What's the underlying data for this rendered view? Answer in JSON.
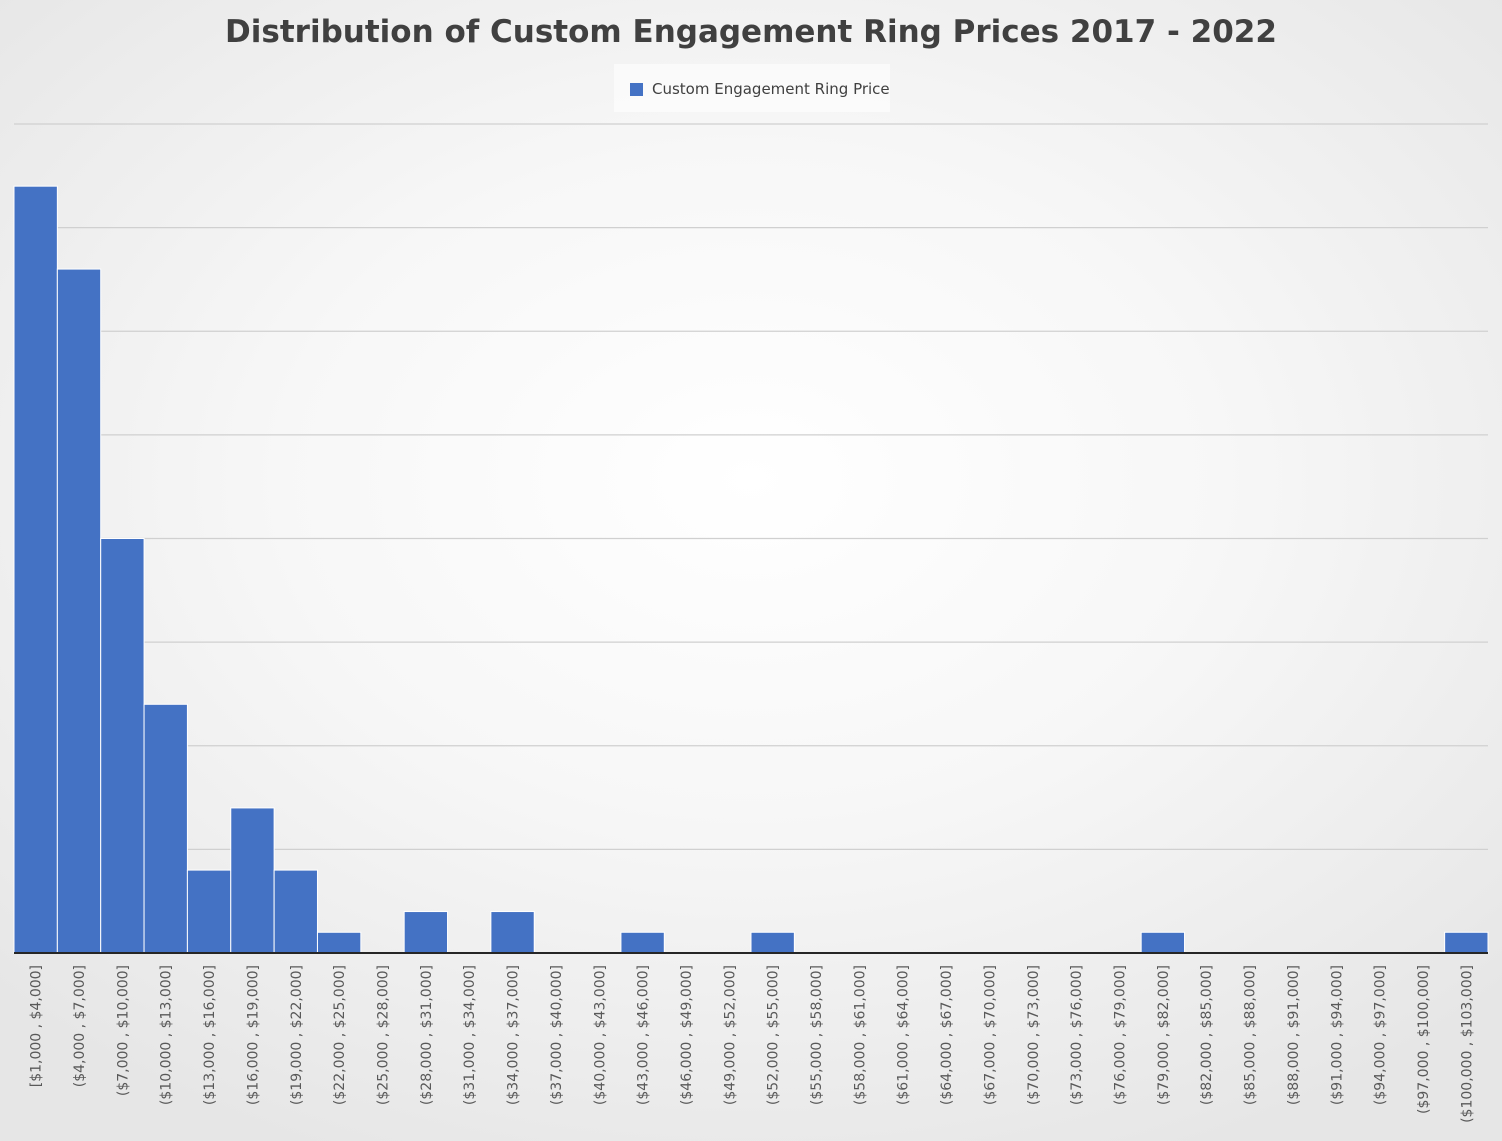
{
  "chart_data": {
    "type": "bar",
    "title": "Distribution of Custom Engagement Ring Prices 2017 - 2022",
    "legend": {
      "position": "top",
      "entries": [
        {
          "name": "Custom Engagement Ring Price",
          "color": "#4472C4"
        }
      ]
    },
    "xlabel": "",
    "ylabel": "",
    "grid": true,
    "y_axis_labels_shown": false,
    "ylim": [
      0,
      40
    ],
    "categories": [
      "[$1,000 , $4,000]",
      "($4,000 , $7,000]",
      "($7,000 , $10,000]",
      "($10,000 , $13,000]",
      "($13,000 , $16,000]",
      "($16,000 , $19,000]",
      "($19,000 , $22,000]",
      "($22,000 , $25,000]",
      "($25,000 , $28,000]",
      "($28,000 , $31,000]",
      "($31,000 , $34,000]",
      "($34,000 , $37,000]",
      "($37,000 , $40,000]",
      "($40,000 , $43,000]",
      "($43,000 , $46,000]",
      "($46,000 , $49,000]",
      "($49,000 , $52,000]",
      "($52,000 , $55,000]",
      "($55,000 , $58,000]",
      "($58,000 , $61,000]",
      "($61,000 , $64,000]",
      "($64,000 , $67,000]",
      "($67,000 , $70,000]",
      "($70,000 , $73,000]",
      "($73,000 , $76,000]",
      "($76,000 , $79,000]",
      "($79,000 , $82,000]",
      "($82,000 , $85,000]",
      "($85,000 , $88,000]",
      "($88,000 , $91,000]",
      "($91,000 , $94,000]",
      "($94,000 , $97,000]",
      "($97,000 , $100,000]",
      "($100,000 , $103,000]"
    ],
    "series": [
      {
        "name": "Custom Engagement Ring Price",
        "color": "#4472C4",
        "values": [
          37,
          33,
          20,
          12,
          4,
          7,
          4,
          1,
          0,
          2,
          0,
          2,
          0,
          0,
          1,
          0,
          0,
          1,
          0,
          0,
          0,
          0,
          0,
          0,
          0,
          0,
          1,
          0,
          0,
          0,
          0,
          0,
          0,
          1
        ]
      }
    ]
  }
}
